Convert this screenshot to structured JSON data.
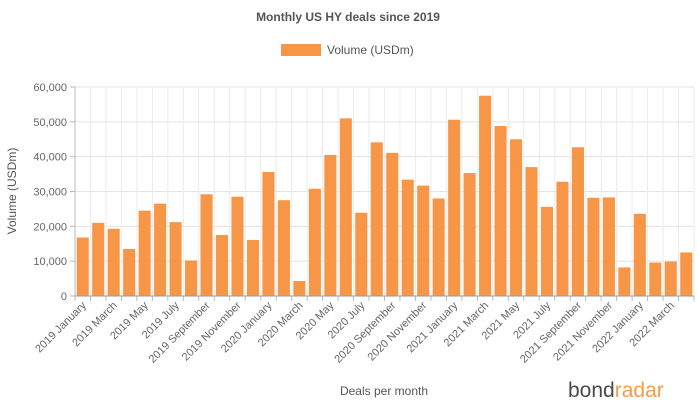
{
  "chart_data": {
    "type": "bar",
    "title": "Monthly US HY deals since 2019",
    "xlabel": "Deals per month",
    "ylabel": "Volume (USDm)",
    "ylim": [
      0,
      60000
    ],
    "y_ticks": [
      "0",
      "10,000",
      "20,000",
      "30,000",
      "40,000",
      "50,000",
      "60,000"
    ],
    "grid": true,
    "legend": "top-center",
    "categories": [
      "2019 January",
      "2019 February",
      "2019 March",
      "2019 April",
      "2019 May",
      "2019 June",
      "2019 July",
      "2019 August",
      "2019 September",
      "2019 October",
      "2019 November",
      "2019 December",
      "2020 January",
      "2020 February",
      "2020 March",
      "2020 April",
      "2020 May",
      "2020 June",
      "2020 July",
      "2020 August",
      "2020 September",
      "2020 October",
      "2020 November",
      "2020 December",
      "2021 January",
      "2021 February",
      "2021 March",
      "2021 April",
      "2021 May",
      "2021 June",
      "2021 July",
      "2021 August",
      "2021 September",
      "2021 October",
      "2021 November",
      "2021 December",
      "2022 January",
      "2022 February",
      "2022 March",
      "2022 April"
    ],
    "visible_tick_labels": [
      "2019 January",
      "2019 March",
      "2019 May",
      "2019 July",
      "2019 September",
      "2019 November",
      "2020 January",
      "2020 March",
      "2020 May",
      "2020 July",
      "2020 September",
      "2020 November",
      "2021 January",
      "2021 March",
      "2021 May",
      "2021 July",
      "2021 September",
      "2021 November",
      "2022 January",
      "2022 March"
    ],
    "series": [
      {
        "name": "Volume (USDm)",
        "color": "#f79646",
        "values": [
          16800,
          21000,
          19300,
          13500,
          24500,
          26500,
          21200,
          10200,
          29200,
          17500,
          28500,
          16100,
          35600,
          27500,
          4300,
          30800,
          40500,
          51000,
          23900,
          44100,
          41100,
          33400,
          31700,
          28000,
          50600,
          35300,
          57500,
          48800,
          45000,
          37000,
          25600,
          32800,
          42700,
          28200,
          28300,
          8200,
          23600,
          9600,
          9900,
          12500
        ]
      }
    ]
  },
  "logo": {
    "part1": "bond",
    "part2": "radar"
  }
}
